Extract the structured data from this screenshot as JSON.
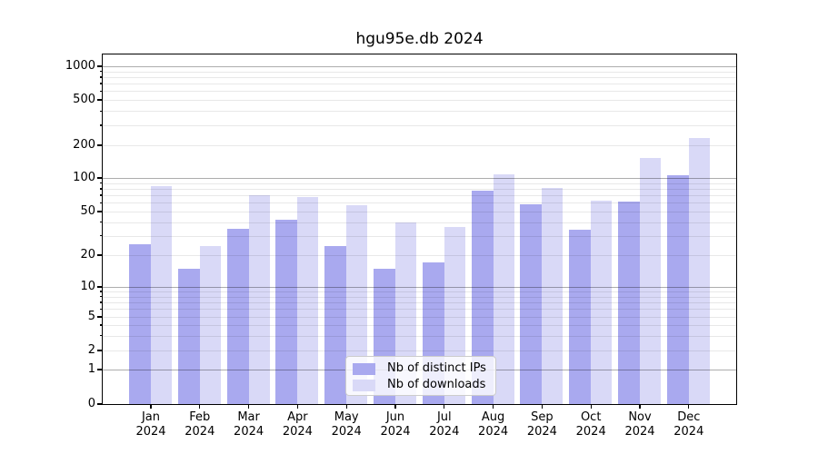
{
  "figure": {
    "title": "hgu95e.db 2024"
  },
  "chart_data": {
    "type": "bar",
    "title": "hgu95e.db 2024",
    "categories": [
      "Jan 2024",
      "Feb 2024",
      "Mar 2024",
      "Apr 2024",
      "May 2024",
      "Jun 2024",
      "Jul 2024",
      "Aug 2024",
      "Sep 2024",
      "Oct 2024",
      "Nov 2024",
      "Dec 2024"
    ],
    "series": [
      {
        "name": "Nb of distinct IPs",
        "color": "#a9a9ef",
        "values": [
          25,
          15,
          35,
          42,
          24,
          15,
          17,
          77,
          58,
          34,
          62,
          107
        ]
      },
      {
        "name": "Nb of downloads",
        "color": "#d9d9f7",
        "values": [
          85,
          24,
          70,
          68,
          57,
          40,
          36,
          108,
          82,
          63,
          153,
          233
        ]
      }
    ],
    "yscale": "symlog",
    "yticks": [
      0,
      1,
      2,
      5,
      10,
      20,
      50,
      100,
      200,
      500,
      1000
    ],
    "ylim": [
      0,
      1290
    ],
    "xlabel": "",
    "ylabel": "",
    "grid": "both",
    "legend": {
      "position": "lower center",
      "entries": [
        "Nb of distinct IPs",
        "Nb of downloads"
      ]
    }
  },
  "colors": {
    "ips_bar": "#a9a9ef",
    "downloads_bar": "#d9d9f7",
    "grid_major": "#b0b0b0",
    "grid_minor": "#e8e8e8",
    "axis": "#000000",
    "background": "#ffffff"
  }
}
